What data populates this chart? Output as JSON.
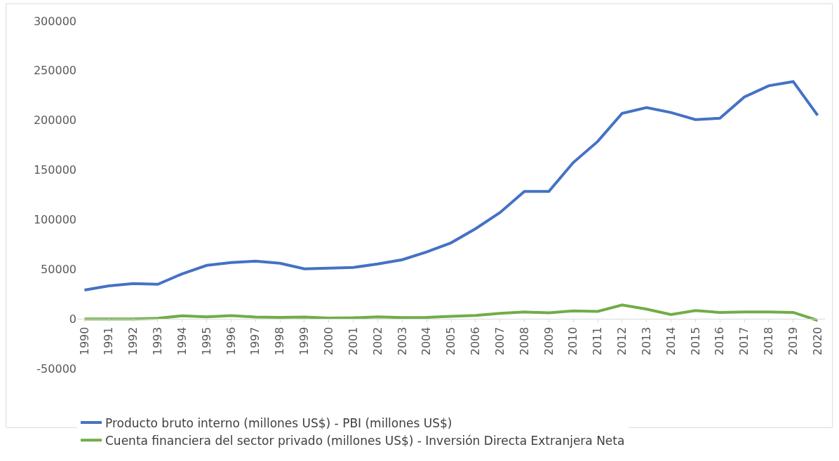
{
  "chart_data": {
    "type": "line",
    "categories": [
      "1990",
      "1991",
      "1992",
      "1993",
      "1994",
      "1995",
      "1996",
      "1997",
      "1998",
      "1999",
      "2000",
      "2001",
      "2002",
      "2003",
      "2004",
      "2005",
      "2006",
      "2007",
      "2008",
      "2009",
      "2010",
      "2011",
      "2012",
      "2013",
      "2014",
      "2015",
      "2016",
      "2017",
      "2018",
      "2019",
      "2020"
    ],
    "series": [
      {
        "name": "Producto bruto interno (millones US$) - PBI (millones US$)",
        "color": "#4472c4",
        "values": [
          29000,
          33300,
          35500,
          34800,
          45400,
          53900,
          56700,
          58200,
          56000,
          50400,
          51000,
          51800,
          55300,
          59600,
          67400,
          76600,
          90800,
          107000,
          128400,
          128400,
          157400,
          178700,
          207000,
          212800,
          207800,
          200700,
          202100,
          223400,
          234800,
          239000,
          205000
        ]
      },
      {
        "name": "Cuenta financiera del sector privado (millones US$) - Inversión Directa Extranjera Neta",
        "color": "#70ad47",
        "values": [
          0,
          0,
          0,
          700,
          3100,
          2000,
          3200,
          1900,
          1600,
          1800,
          800,
          1100,
          2100,
          1300,
          1600,
          2600,
          3500,
          5500,
          6900,
          6100,
          8100,
          7500,
          14000,
          9800,
          4400,
          8300,
          6500,
          7000,
          6900,
          6500,
          -1500
        ]
      }
    ],
    "ylim": [
      -50000,
      300000
    ],
    "yticks": [
      -50000,
      0,
      50000,
      100000,
      150000,
      200000,
      250000,
      300000
    ],
    "grid": false,
    "legend": "bottom",
    "marker": "none",
    "line_style": "solid"
  }
}
